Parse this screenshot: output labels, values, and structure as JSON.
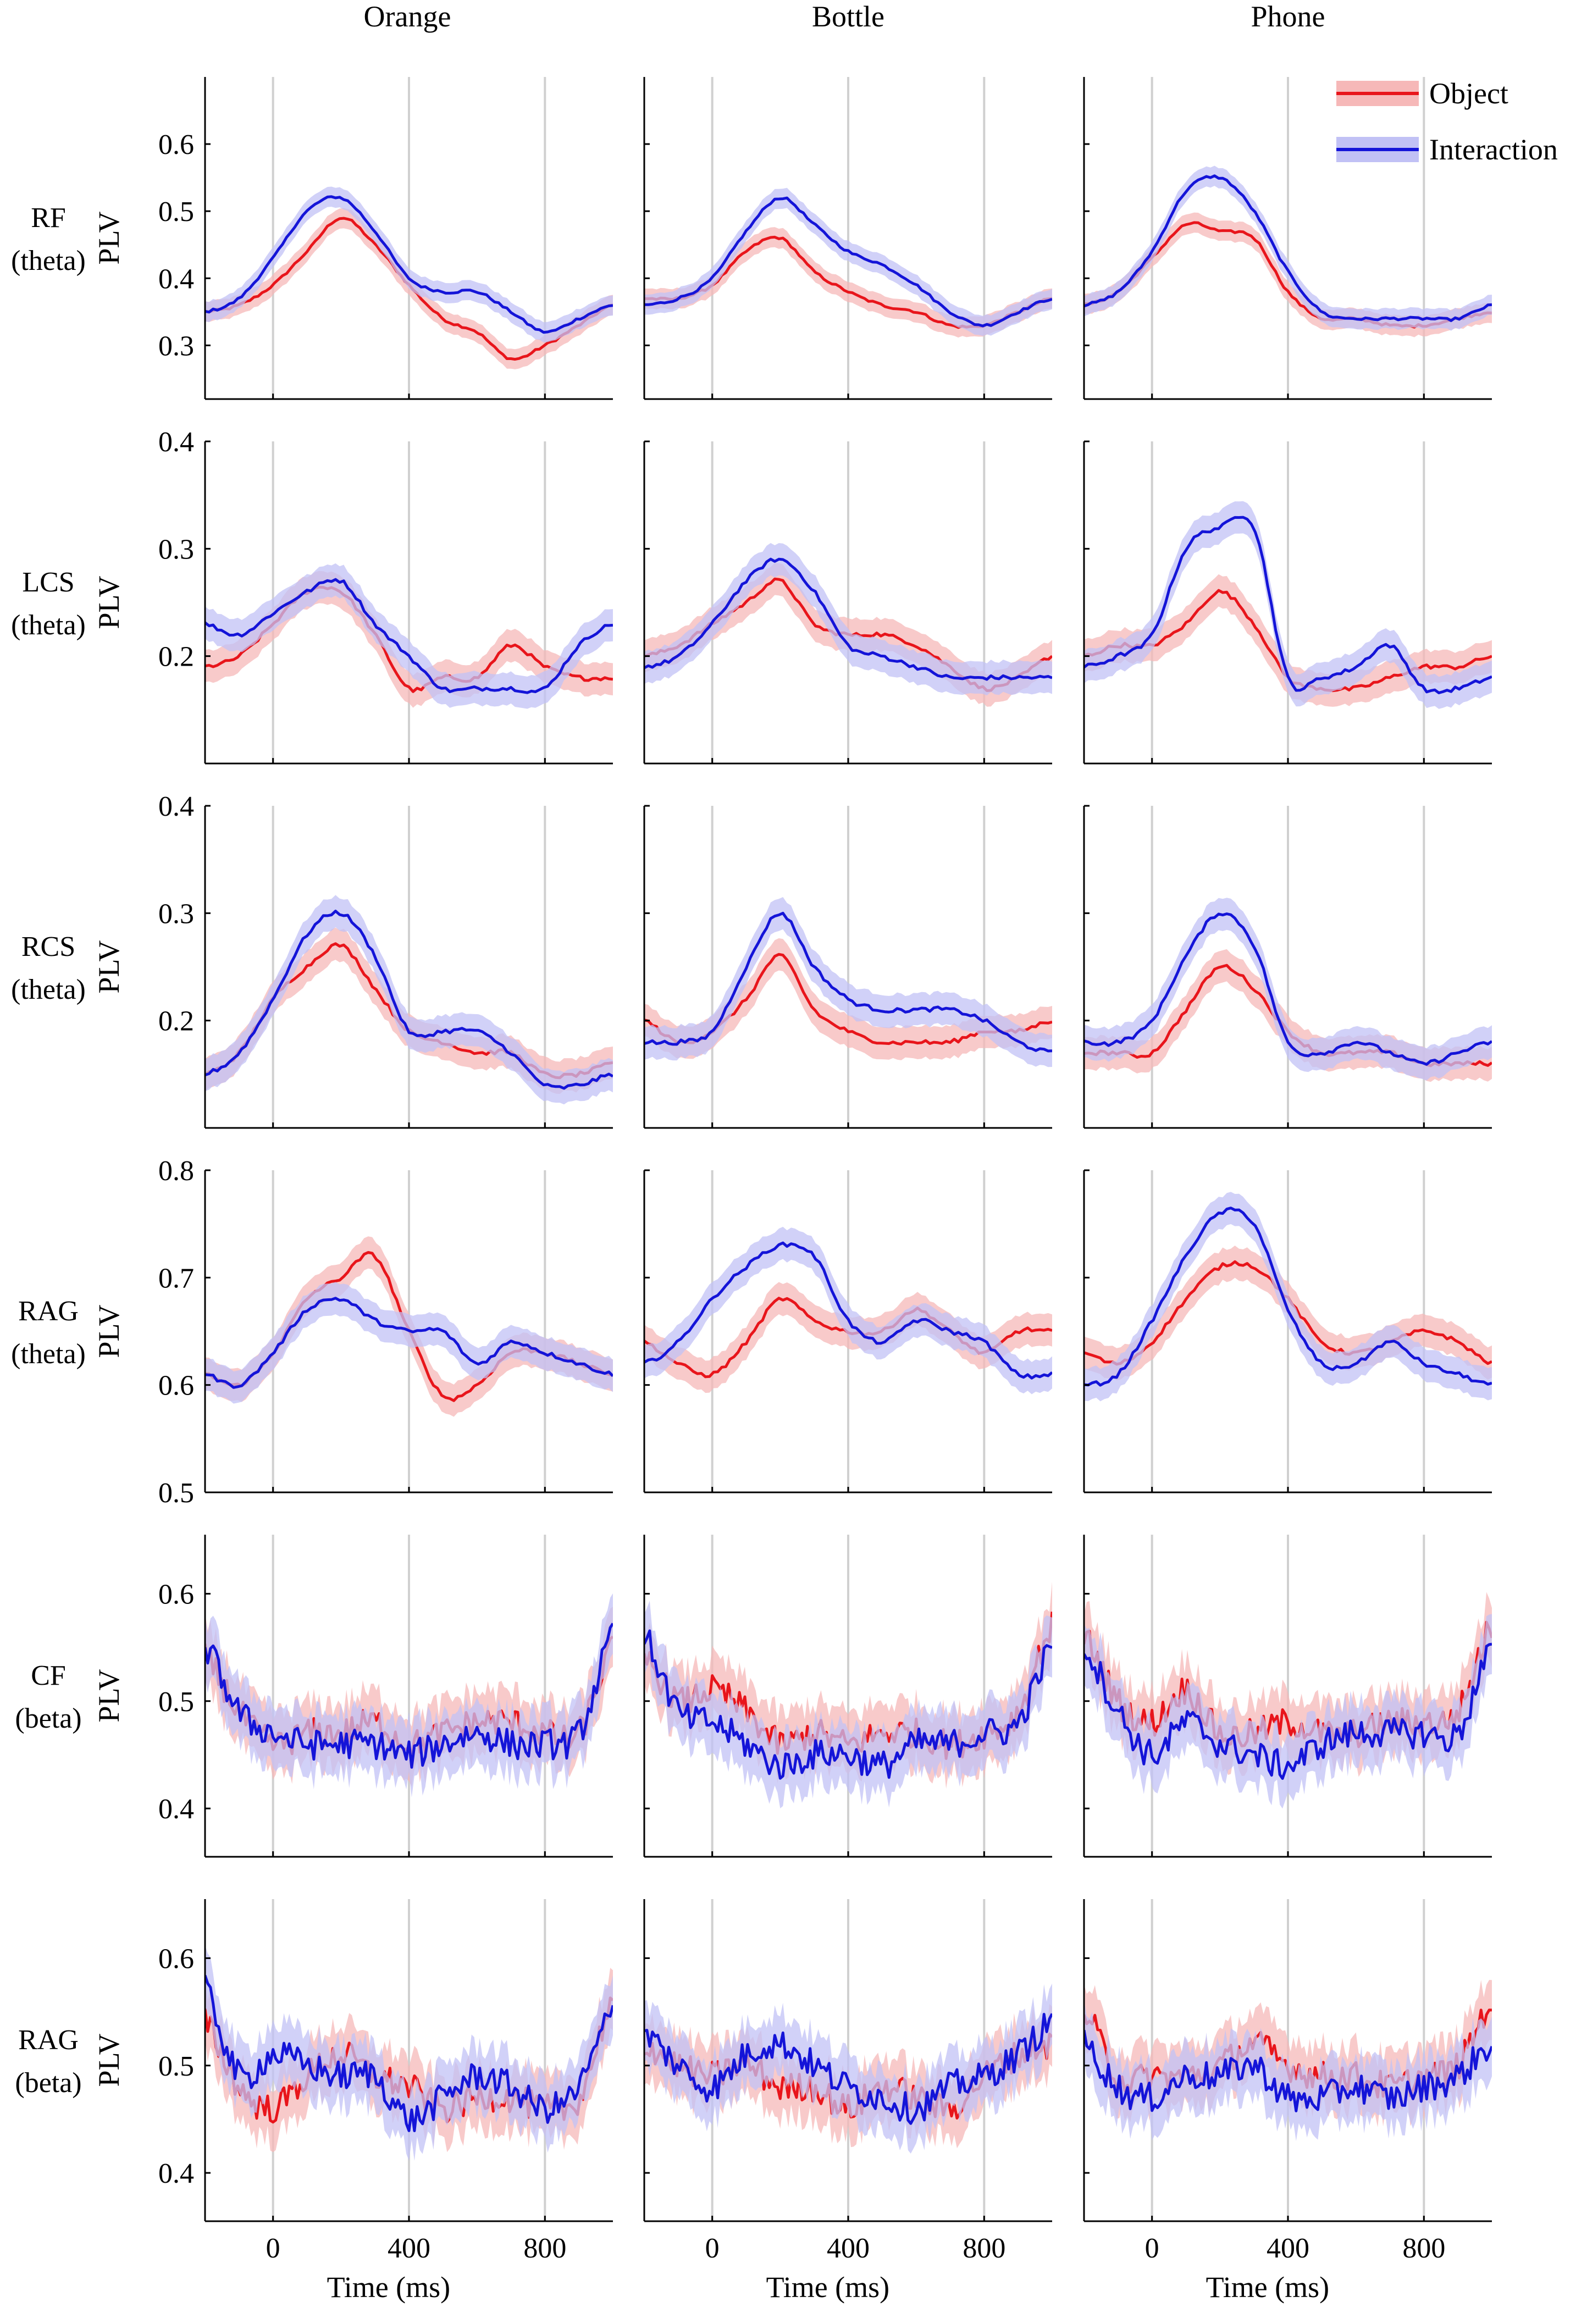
{
  "figure": {
    "columns": [
      "Orange",
      "Bottle",
      "Phone"
    ],
    "row_labels": [
      [
        "RF",
        "(theta)"
      ],
      [
        "LCS",
        "(theta)"
      ],
      [
        "RCS",
        "(theta)"
      ],
      [
        "RAG",
        "(theta)"
      ],
      [
        "CF",
        "(beta)"
      ],
      [
        "RAG",
        "(beta)"
      ]
    ],
    "ylabel": "PLV",
    "xlabel": "Time (ms)",
    "legend": [
      "Object",
      "Interaction"
    ],
    "colors": {
      "object": "#e8151b",
      "interaction": "#1414d8",
      "object_band": "#f6b8b8",
      "interaction_band": "#c1c1f5",
      "vline": "#d0d0d0"
    }
  },
  "chart_data": {
    "type": "line",
    "x_range": [
      -200,
      1000
    ],
    "x_ticks": [
      0,
      400,
      800
    ],
    "x_tick_labels": [
      "0",
      "400",
      "800"
    ],
    "vlines": [
      0,
      400,
      800
    ],
    "x": [
      -200,
      -100,
      0,
      100,
      200,
      300,
      400,
      500,
      600,
      700,
      800,
      900,
      1000
    ],
    "rows": [
      {
        "region": "RF",
        "band": "theta",
        "ylim": [
          0.22,
          0.7
        ],
        "yticks": [
          0.3,
          0.4,
          0.5,
          0.6
        ],
        "ytick_labels": [
          "0.3",
          "0.4",
          "0.5",
          "0.6"
        ],
        "band_halfwidth": 0.015,
        "panels": [
          {
            "object": [
              0.35,
              0.36,
              0.39,
              0.44,
              0.49,
              0.45,
              0.39,
              0.34,
              0.32,
              0.28,
              0.3,
              0.33,
              0.36
            ],
            "interaction": [
              0.35,
              0.37,
              0.43,
              0.5,
              0.52,
              0.47,
              0.4,
              0.38,
              0.38,
              0.35,
              0.32,
              0.34,
              0.36
            ]
          },
          {
            "object": [
              0.37,
              0.37,
              0.39,
              0.44,
              0.46,
              0.41,
              0.38,
              0.36,
              0.35,
              0.33,
              0.33,
              0.35,
              0.37
            ],
            "interaction": [
              0.36,
              0.37,
              0.4,
              0.47,
              0.52,
              0.48,
              0.44,
              0.42,
              0.39,
              0.35,
              0.33,
              0.35,
              0.37
            ]
          },
          {
            "object": [
              0.36,
              0.38,
              0.43,
              0.48,
              0.47,
              0.46,
              0.38,
              0.34,
              0.34,
              0.33,
              0.33,
              0.34,
              0.35
            ],
            "interaction": [
              0.36,
              0.38,
              0.44,
              0.53,
              0.55,
              0.5,
              0.41,
              0.35,
              0.34,
              0.34,
              0.34,
              0.34,
              0.36
            ]
          }
        ]
      },
      {
        "region": "LCS",
        "band": "theta",
        "ylim": [
          0.1,
          0.4
        ],
        "yticks": [
          0.2,
          0.3,
          0.4
        ],
        "ytick_labels": [
          "0.2",
          "0.3",
          "0.4"
        ],
        "band_halfwidth": 0.015,
        "panels": [
          {
            "object": [
              0.19,
              0.2,
              0.23,
              0.26,
              0.26,
              0.22,
              0.17,
              0.18,
              0.18,
              0.21,
              0.19,
              0.18,
              0.18
            ],
            "interaction": [
              0.23,
              0.22,
              0.24,
              0.26,
              0.27,
              0.23,
              0.2,
              0.17,
              0.17,
              0.17,
              0.17,
              0.21,
              0.23
            ]
          },
          {
            "object": [
              0.2,
              0.21,
              0.23,
              0.25,
              0.27,
              0.23,
              0.22,
              0.22,
              0.21,
              0.19,
              0.17,
              0.18,
              0.2
            ],
            "interaction": [
              0.19,
              0.2,
              0.23,
              0.27,
              0.29,
              0.26,
              0.21,
              0.2,
              0.19,
              0.18,
              0.18,
              0.18,
              0.18
            ]
          },
          {
            "object": [
              0.2,
              0.21,
              0.21,
              0.23,
              0.26,
              0.23,
              0.18,
              0.17,
              0.17,
              0.18,
              0.19,
              0.19,
              0.2
            ],
            "interaction": [
              0.19,
              0.2,
              0.22,
              0.3,
              0.32,
              0.32,
              0.18,
              0.18,
              0.19,
              0.21,
              0.17,
              0.17,
              0.18
            ]
          }
        ]
      },
      {
        "region": "RCS",
        "band": "theta",
        "ylim": [
          0.1,
          0.4
        ],
        "yticks": [
          0.2,
          0.3,
          0.4
        ],
        "ytick_labels": [
          "0.2",
          "0.3",
          "0.4"
        ],
        "band_halfwidth": 0.015,
        "panels": [
          {
            "object": [
              0.15,
              0.17,
              0.22,
              0.25,
              0.27,
              0.23,
              0.19,
              0.18,
              0.17,
              0.17,
              0.15,
              0.15,
              0.16
            ],
            "interaction": [
              0.15,
              0.17,
              0.22,
              0.28,
              0.3,
              0.26,
              0.19,
              0.19,
              0.19,
              0.17,
              0.14,
              0.14,
              0.15
            ]
          },
          {
            "object": [
              0.2,
              0.18,
              0.19,
              0.22,
              0.26,
              0.21,
              0.19,
              0.18,
              0.18,
              0.18,
              0.19,
              0.19,
              0.2
            ],
            "interaction": [
              0.18,
              0.18,
              0.19,
              0.25,
              0.3,
              0.25,
              0.22,
              0.21,
              0.21,
              0.21,
              0.2,
              0.18,
              0.17
            ]
          },
          {
            "object": [
              0.17,
              0.17,
              0.17,
              0.21,
              0.25,
              0.23,
              0.19,
              0.17,
              0.17,
              0.17,
              0.16,
              0.16,
              0.16
            ],
            "interaction": [
              0.18,
              0.18,
              0.2,
              0.26,
              0.3,
              0.27,
              0.18,
              0.17,
              0.18,
              0.17,
              0.16,
              0.17,
              0.18
            ]
          }
        ]
      },
      {
        "region": "RAG",
        "band": "theta",
        "ylim": [
          0.5,
          0.8
        ],
        "yticks": [
          0.5,
          0.6,
          0.7,
          0.8
        ],
        "ytick_labels": [
          "0.5",
          "0.6",
          "0.7",
          "0.8"
        ],
        "band_halfwidth": 0.015,
        "panels": [
          {
            "object": [
              0.61,
              0.6,
              0.63,
              0.68,
              0.7,
              0.72,
              0.65,
              0.59,
              0.6,
              0.63,
              0.63,
              0.62,
              0.61
            ],
            "interaction": [
              0.61,
              0.6,
              0.63,
              0.67,
              0.68,
              0.66,
              0.65,
              0.65,
              0.62,
              0.64,
              0.63,
              0.62,
              0.61
            ]
          },
          {
            "object": [
              0.64,
              0.62,
              0.61,
              0.64,
              0.68,
              0.66,
              0.65,
              0.65,
              0.67,
              0.65,
              0.63,
              0.65,
              0.65
            ],
            "interaction": [
              0.62,
              0.64,
              0.68,
              0.71,
              0.73,
              0.72,
              0.66,
              0.64,
              0.66,
              0.65,
              0.64,
              0.61,
              0.61
            ]
          },
          {
            "object": [
              0.63,
              0.62,
              0.64,
              0.68,
              0.71,
              0.71,
              0.68,
              0.64,
              0.63,
              0.64,
              0.65,
              0.64,
              0.62
            ],
            "interaction": [
              0.6,
              0.61,
              0.66,
              0.72,
              0.76,
              0.75,
              0.67,
              0.62,
              0.62,
              0.64,
              0.62,
              0.61,
              0.6
            ]
          }
        ]
      },
      {
        "region": "CF",
        "band": "beta",
        "ylim": [
          0.355,
          0.655
        ],
        "yticks": [
          0.4,
          0.5,
          0.6
        ],
        "ytick_labels": [
          "0.4",
          "0.5",
          "0.6"
        ],
        "band_halfwidth": 0.028,
        "panels": [
          {
            "object": [
              0.54,
              0.49,
              0.46,
              0.47,
              0.47,
              0.48,
              0.46,
              0.47,
              0.48,
              0.48,
              0.47,
              0.47,
              0.55
            ],
            "interaction": [
              0.55,
              0.49,
              0.47,
              0.46,
              0.46,
              0.46,
              0.45,
              0.46,
              0.47,
              0.46,
              0.46,
              0.47,
              0.56
            ]
          },
          {
            "object": [
              0.54,
              0.5,
              0.51,
              0.49,
              0.46,
              0.47,
              0.46,
              0.47,
              0.47,
              0.46,
              0.47,
              0.49,
              0.57
            ],
            "interaction": [
              0.56,
              0.49,
              0.48,
              0.46,
              0.44,
              0.45,
              0.45,
              0.44,
              0.46,
              0.46,
              0.47,
              0.48,
              0.55
            ]
          },
          {
            "object": [
              0.56,
              0.5,
              0.48,
              0.51,
              0.47,
              0.47,
              0.48,
              0.47,
              0.47,
              0.48,
              0.48,
              0.49,
              0.57
            ],
            "interaction": [
              0.55,
              0.49,
              0.45,
              0.48,
              0.46,
              0.45,
              0.44,
              0.46,
              0.47,
              0.47,
              0.47,
              0.47,
              0.55
            ]
          }
        ]
      },
      {
        "region": "RAG",
        "band": "beta",
        "ylim": [
          0.355,
          0.655
        ],
        "yticks": [
          0.4,
          0.5,
          0.6
        ],
        "ytick_labels": [
          "0.4",
          "0.5",
          "0.6"
        ],
        "band_halfwidth": 0.028,
        "panels": [
          {
            "object": [
              0.54,
              0.48,
              0.46,
              0.49,
              0.51,
              0.49,
              0.48,
              0.46,
              0.47,
              0.47,
              0.46,
              0.47,
              0.56
            ],
            "interaction": [
              0.57,
              0.49,
              0.51,
              0.5,
              0.49,
              0.49,
              0.45,
              0.47,
              0.49,
              0.48,
              0.46,
              0.48,
              0.55
            ]
          },
          {
            "object": [
              0.52,
              0.5,
              0.49,
              0.5,
              0.48,
              0.48,
              0.46,
              0.48,
              0.47,
              0.46,
              0.49,
              0.51,
              0.52
            ],
            "interaction": [
              0.53,
              0.5,
              0.48,
              0.51,
              0.52,
              0.5,
              0.48,
              0.47,
              0.46,
              0.48,
              0.49,
              0.51,
              0.54
            ]
          },
          {
            "object": [
              0.55,
              0.49,
              0.49,
              0.49,
              0.5,
              0.52,
              0.5,
              0.49,
              0.49,
              0.48,
              0.49,
              0.5,
              0.56
            ],
            "interaction": [
              0.52,
              0.48,
              0.47,
              0.49,
              0.49,
              0.5,
              0.47,
              0.47,
              0.48,
              0.47,
              0.48,
              0.49,
              0.52
            ]
          }
        ]
      }
    ]
  }
}
